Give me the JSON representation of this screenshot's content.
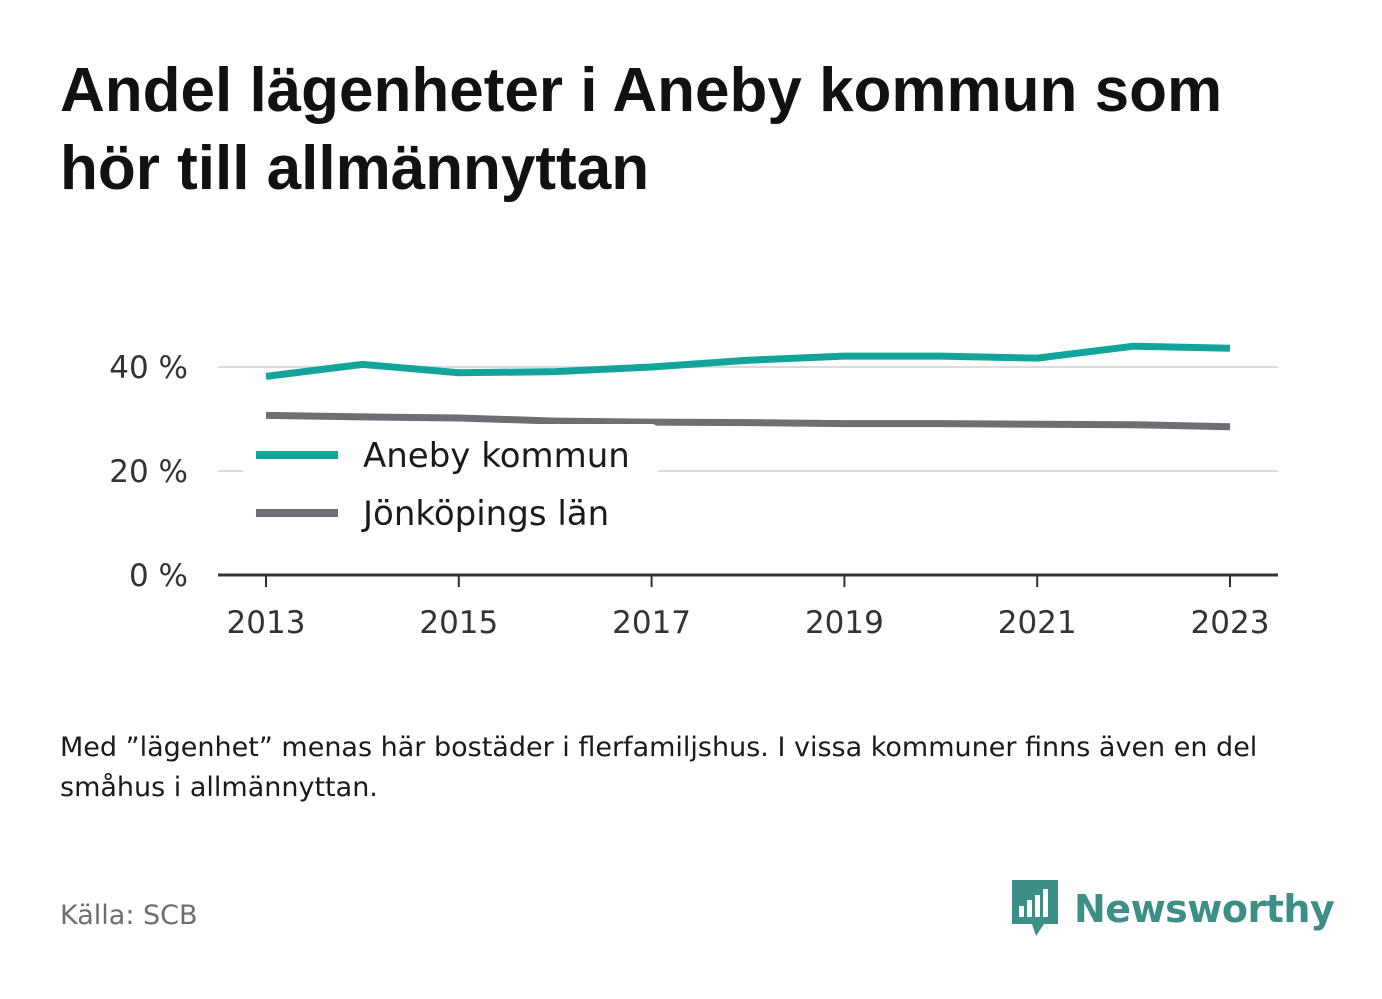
{
  "title": "Andel lägenheter i Aneby kommun som hör till allmännyttan",
  "note": "Med ”lägenhet” menas här bostäder i flerfamiljshus. I vissa kommuner finns även en del småhus i allmännyttan.",
  "source": "Källa: SCB",
  "brand": {
    "name": "Newsworthy",
    "icon": "newsworthy-logo-icon",
    "color": "#3b8f87"
  },
  "chart_data": {
    "type": "line",
    "x": [
      2013,
      2014,
      2015,
      2016,
      2017,
      2018,
      2019,
      2020,
      2021,
      2022,
      2023
    ],
    "x_tick_labels": [
      "2013",
      "2015",
      "2017",
      "2019",
      "2021",
      "2023"
    ],
    "y_ticks": [
      0,
      20,
      40
    ],
    "y_tick_labels": [
      "0 %",
      "20 %",
      "40 %"
    ],
    "ylim": [
      0,
      40
    ],
    "grid": true,
    "legend_position": "left-middle",
    "series": [
      {
        "name": "Aneby kommun",
        "color": "#13a59b",
        "values": [
          38.2,
          40.5,
          38.9,
          39.1,
          40.0,
          41.3,
          42.1,
          42.1,
          41.7,
          44.0,
          43.6
        ]
      },
      {
        "name": "Jönköpings län",
        "color": "#6f6e75",
        "values": [
          30.7,
          30.4,
          30.2,
          29.6,
          29.4,
          29.3,
          29.1,
          29.1,
          29.0,
          28.9,
          28.5
        ]
      }
    ]
  }
}
